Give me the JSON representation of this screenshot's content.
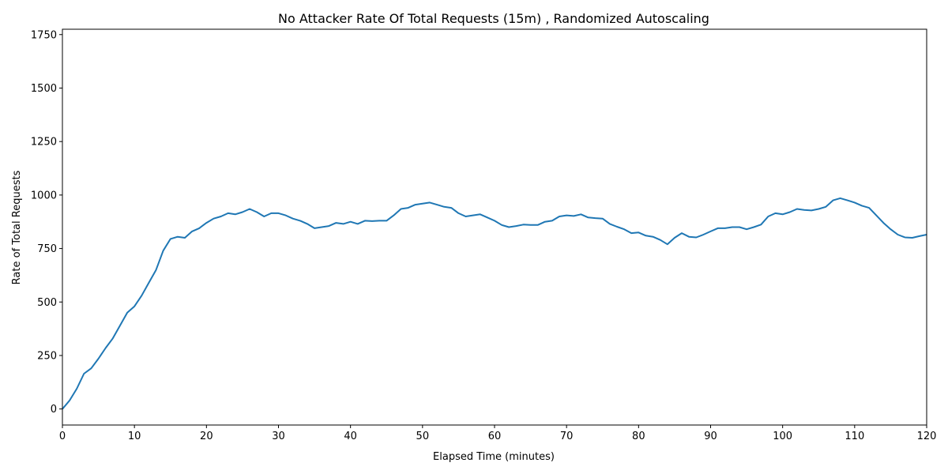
{
  "chart_data": {
    "type": "line",
    "title": "No Attacker Rate Of Total Requests (15m) , Randomized Autoscaling",
    "xlabel": "Elapsed Time (minutes)",
    "ylabel": "Rate of Total Requests",
    "xlim": [
      0,
      120
    ],
    "ylim": [
      -75,
      1775
    ],
    "xticks": [
      0,
      10,
      20,
      30,
      40,
      50,
      60,
      70,
      80,
      90,
      100,
      110,
      120
    ],
    "yticks": [
      0,
      250,
      500,
      750,
      1000,
      1250,
      1500,
      1750
    ],
    "grid": false,
    "legend": "none",
    "series_color": "#1f77b4",
    "series": [
      {
        "x": [
          0,
          1,
          2,
          3,
          4,
          5,
          6,
          7,
          8,
          9,
          10,
          11,
          12,
          13,
          14,
          15,
          16,
          17,
          18,
          19,
          20,
          21,
          22,
          23,
          24,
          25,
          26,
          27,
          28,
          29,
          30,
          31,
          32,
          33,
          34,
          35,
          36,
          37,
          38,
          39,
          40,
          41,
          42,
          43,
          44,
          45,
          46,
          47,
          48,
          49,
          50,
          51,
          52,
          53,
          54,
          55,
          56,
          57,
          58,
          59,
          60,
          61,
          62,
          63,
          64,
          65,
          66,
          67,
          68,
          69,
          70,
          71,
          72,
          73,
          74,
          75,
          76,
          77,
          78,
          79,
          80,
          81,
          82,
          83,
          84,
          85,
          86,
          87,
          88,
          89,
          90,
          91,
          92,
          93,
          94,
          95,
          96,
          97,
          98,
          99,
          100,
          101,
          102,
          103,
          104,
          105,
          106,
          107,
          108,
          109,
          110,
          111,
          112,
          113,
          114,
          115,
          116,
          117,
          118,
          119,
          120
        ],
        "y": [
          0,
          40,
          95,
          165,
          190,
          235,
          285,
          330,
          390,
          450,
          480,
          530,
          590,
          650,
          740,
          795,
          805,
          800,
          830,
          845,
          870,
          890,
          900,
          915,
          910,
          920,
          935,
          920,
          900,
          915,
          915,
          905,
          890,
          880,
          865,
          845,
          850,
          855,
          870,
          865,
          875,
          865,
          880,
          878,
          880,
          880,
          905,
          935,
          940,
          955,
          960,
          965,
          955,
          945,
          940,
          915,
          900,
          905,
          910,
          895,
          880,
          860,
          850,
          855,
          862,
          860,
          860,
          875,
          880,
          900,
          905,
          902,
          910,
          895,
          892,
          890,
          865,
          852,
          840,
          822,
          825,
          810,
          805,
          790,
          770,
          800,
          822,
          805,
          802,
          815,
          830,
          845,
          845,
          850,
          850,
          840,
          850,
          862,
          900,
          915,
          910,
          920,
          935,
          930,
          928,
          935,
          945,
          975,
          985,
          975,
          965,
          950,
          940,
          905,
          870,
          840,
          815,
          802,
          800,
          808,
          815
        ]
      }
    ]
  }
}
